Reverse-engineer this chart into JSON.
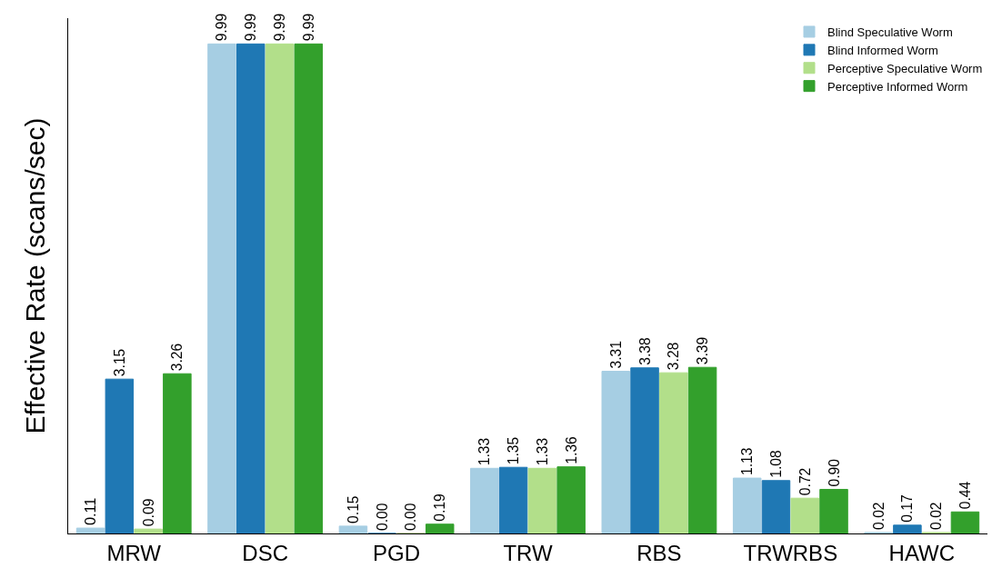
{
  "chart_data": {
    "type": "bar",
    "ylabel": "Effective Rate (scans/sec)",
    "categories": [
      "MRW",
      "DSC",
      "PGD",
      "TRW",
      "RBS",
      "TRWRBS",
      "HAWC"
    ],
    "series": [
      {
        "name": "Blind Speculative Worm",
        "color": "#a6cee3",
        "values": [
          0.11,
          9.99,
          0.15,
          1.33,
          3.31,
          1.13,
          0.02
        ],
        "value_labels": [
          "0.11",
          "9.99",
          "0.15",
          "1.33",
          "3.31",
          "1.13",
          "0.02"
        ]
      },
      {
        "name": "Blind Informed Worm",
        "color": "#1f78b4",
        "values": [
          3.15,
          9.99,
          0.0,
          1.35,
          3.38,
          1.08,
          0.17
        ],
        "value_labels": [
          "3.15",
          "9.99",
          "0.00",
          "1.35",
          "3.38",
          "1.08",
          "0.17"
        ]
      },
      {
        "name": "Perceptive Speculative Worm",
        "color": "#b2df8a",
        "values": [
          0.09,
          9.99,
          0.0,
          1.33,
          3.28,
          0.72,
          0.02
        ],
        "value_labels": [
          "0.09",
          "9.99",
          "0.00",
          "1.33",
          "3.28",
          "0.72",
          "0.02"
        ]
      },
      {
        "name": "Perceptive Informed Worm",
        "color": "#33a02c",
        "values": [
          3.26,
          9.99,
          0.19,
          1.36,
          3.39,
          0.9,
          0.44
        ],
        "value_labels": [
          "3.26",
          "9.99",
          "0.19",
          "1.36",
          "3.39",
          "0.90",
          "0.44"
        ]
      }
    ],
    "legend": "top right",
    "tick_labels": "x"
  }
}
